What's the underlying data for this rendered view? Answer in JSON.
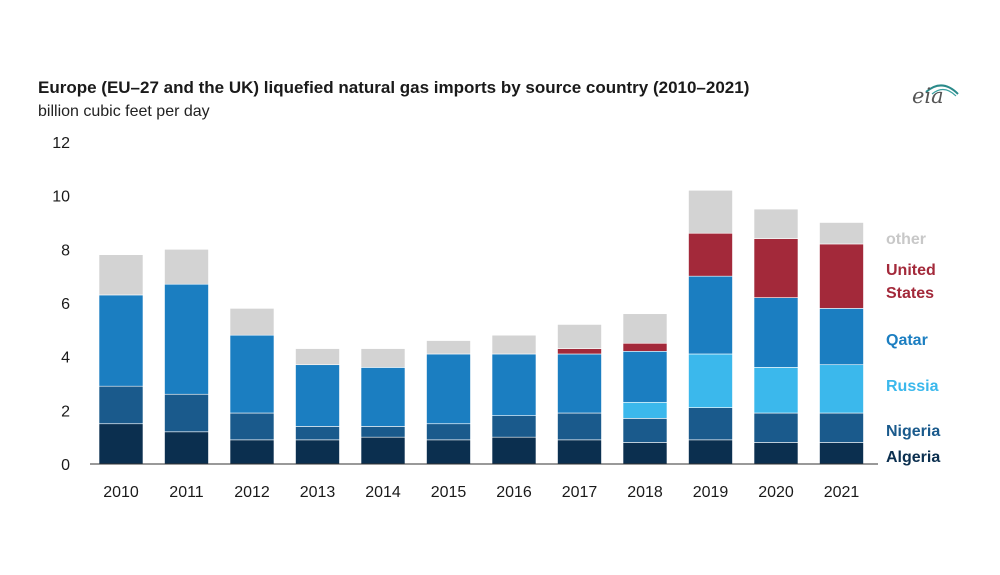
{
  "header": {
    "title": "Europe (EU–27 and the UK) liquefied natural gas imports by source country (2010–2021)",
    "subtitle": "billion cubic feet per day",
    "logo_text": "eia"
  },
  "chart_data": {
    "type": "bar",
    "stacked": true,
    "title": "Europe (EU–27 and the UK) liquefied natural gas imports by source country (2010–2021)",
    "ylabel": "billion cubic feet per day",
    "xlabel": "",
    "ylim": [
      0,
      12
    ],
    "yticks": [
      0,
      2,
      4,
      6,
      8,
      10,
      12
    ],
    "grid": false,
    "legend": "right, labels beside last bar",
    "categories": [
      "2010",
      "2011",
      "2012",
      "2013",
      "2014",
      "2015",
      "2016",
      "2017",
      "2018",
      "2019",
      "2020",
      "2021"
    ],
    "series": [
      {
        "name": "Algeria",
        "color": "#0b2f4f",
        "values": [
          1.5,
          1.2,
          0.9,
          0.9,
          1.0,
          0.9,
          1.0,
          0.9,
          0.8,
          0.9,
          0.8,
          0.8
        ]
      },
      {
        "name": "Nigeria",
        "color": "#1a5a8c",
        "values": [
          1.4,
          1.4,
          1.0,
          0.5,
          0.4,
          0.6,
          0.8,
          1.0,
          0.9,
          1.2,
          1.1,
          1.1
        ]
      },
      {
        "name": "Russia",
        "color": "#3bb8ec",
        "values": [
          0,
          0,
          0,
          0,
          0,
          0,
          0,
          0,
          0.6,
          2.0,
          1.7,
          1.8
        ]
      },
      {
        "name": "Qatar",
        "color": "#1b7ec1",
        "values": [
          3.4,
          4.1,
          2.9,
          2.3,
          2.2,
          2.6,
          2.3,
          2.2,
          1.9,
          2.9,
          2.6,
          2.1
        ]
      },
      {
        "name": "United States",
        "color": "#a3293a",
        "values": [
          0,
          0,
          0,
          0,
          0,
          0,
          0,
          0.2,
          0.3,
          1.6,
          2.2,
          2.4
        ]
      },
      {
        "name": "other",
        "color": "#d3d3d3",
        "values": [
          1.5,
          1.3,
          1.0,
          0.6,
          0.7,
          0.5,
          0.7,
          0.9,
          1.1,
          1.6,
          1.1,
          0.8
        ]
      }
    ],
    "series_label_colors": {
      "Algeria": "#0b2f4f",
      "Nigeria": "#1a5a8c",
      "Russia": "#3bb8ec",
      "Qatar": "#1b7ec1",
      "United States": "#a3293a",
      "other": "#c8c8c8"
    }
  }
}
